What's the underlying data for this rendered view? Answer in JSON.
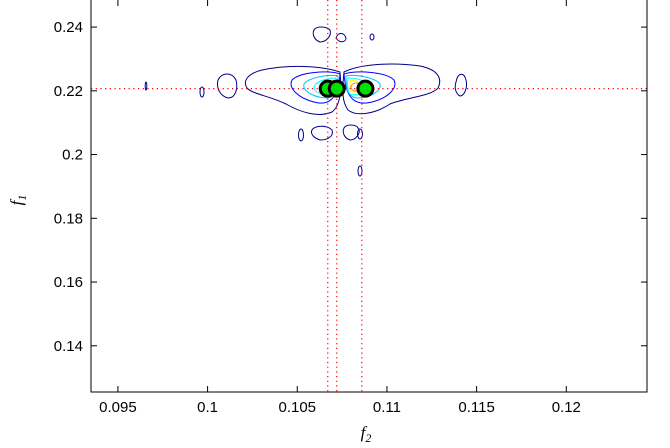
{
  "chart_data": {
    "type": "contour",
    "title": "",
    "xlabel": "f",
    "xlabel_sub": "2",
    "ylabel": "f",
    "ylabel_sub": "1",
    "xlim": [
      0.0935,
      0.1245
    ],
    "ylim": [
      0.1255,
      0.2485
    ],
    "x_ticks": [
      0.095,
      0.1,
      0.105,
      0.11,
      0.115,
      0.12
    ],
    "x_tick_labels": [
      "0.095",
      "0.1",
      "0.105",
      "0.11",
      "0.115",
      "0.12"
    ],
    "y_ticks": [
      0.14,
      0.16,
      0.18,
      0.2,
      0.22,
      0.24
    ],
    "y_tick_labels": [
      "0.14",
      "0.16",
      "0.18",
      "0.2",
      "0.22",
      "0.24"
    ],
    "grid": false,
    "reference_lines": {
      "vertical_x": [
        0.1067,
        0.1072,
        0.1086
      ],
      "horizontal_y": [
        0.2207
      ],
      "color": "#ff0000",
      "style": "dotted"
    },
    "contour_levels": [
      {
        "name": "level-1",
        "color": "#00008b"
      },
      {
        "name": "level-2",
        "color": "#0000ff"
      },
      {
        "name": "level-3",
        "color": "#00bfff"
      },
      {
        "name": "level-4",
        "color": "#00ffff"
      },
      {
        "name": "level-5",
        "color": "#ffff00"
      },
      {
        "name": "level-6",
        "color": "#ff8c00"
      }
    ],
    "markers": [
      {
        "x": 0.1067,
        "y": 0.2207
      },
      {
        "x": 0.1072,
        "y": 0.2207
      },
      {
        "x": 0.1088,
        "y": 0.2207
      }
    ],
    "marker_fill": "#00dd00",
    "marker_edge": "#000000"
  }
}
